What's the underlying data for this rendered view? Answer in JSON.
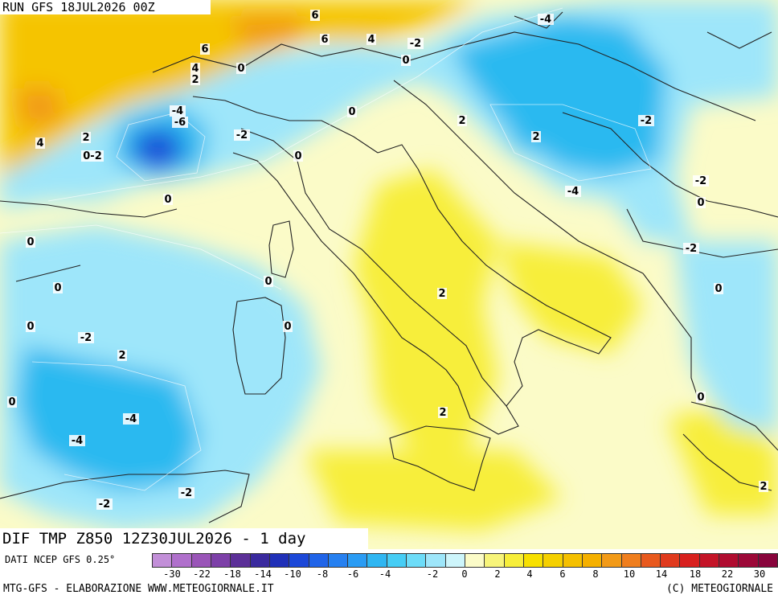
{
  "run_title": "RUN GFS 18JUL2026 00Z",
  "field_title": "DIF TMP Z850 12Z30JUL2026 - 1 day",
  "source_label": "DATI NCEP GFS 0.25°",
  "footer_left": "MTG-GFS - ELABORAZIONE WWW.METEOGIORNALE.IT",
  "footer_right": "(C) METEOGIORNALE",
  "colors": {
    "cold_dark": "#1f4fd8",
    "cold": "#29b9f0",
    "cool": "#9ee6fa",
    "neutral": "#fbfbc8",
    "warm": "#f7ee3a",
    "warm_strong": "#f5c400",
    "hot": "#f29a18"
  },
  "scale_colors": [
    "#c28fd8",
    "#b070cc",
    "#9a55b8",
    "#7d40a8",
    "#5c3098",
    "#3a2a9e",
    "#2030b8",
    "#1c48d8",
    "#2064e8",
    "#2680f0",
    "#2a9cf4",
    "#2fb6f2",
    "#46cdf5",
    "#6ddcf8",
    "#9ee6fa",
    "#cdf5fb",
    "#fbfbc8",
    "#f7f47a",
    "#f7ee3a",
    "#f7e000",
    "#f5d000",
    "#f5c000",
    "#f5b000",
    "#f29a18",
    "#ef7e1e",
    "#e8591e",
    "#e03a1e",
    "#d8201e",
    "#c41428",
    "#b00c30",
    "#9c0838",
    "#88043c"
  ],
  "scale_ticks": [
    "-30",
    "-22",
    "-18",
    "-14",
    "-10",
    "-8",
    "-6",
    "-4",
    "-2",
    "0",
    "2",
    "4",
    "6",
    "8",
    "10",
    "14",
    "18",
    "22",
    "30"
  ],
  "contour_labels": [
    "6",
    "6",
    "6",
    "4",
    "-2",
    "0",
    "-4",
    "4",
    "2",
    "0",
    "-4",
    "-6",
    "0",
    "2",
    "4",
    "2",
    "0-2",
    "-2",
    "0",
    "-2",
    "2",
    "-4",
    "-2",
    "0",
    "0",
    "0",
    "-2",
    "0",
    "0",
    "2",
    "0",
    "0",
    "-2",
    "0",
    "2",
    "0",
    "0",
    "-4",
    "-4",
    "2",
    "-2",
    "-2",
    "2"
  ]
}
